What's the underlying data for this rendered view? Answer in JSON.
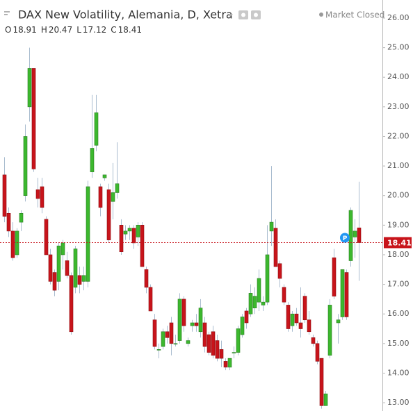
{
  "chart_data": {
    "type": "candlestick",
    "title": "DAX New Volatility, Alemania, D, Xetra",
    "status": "Market Closed",
    "ohlc_labels": [
      "O",
      "H",
      "L",
      "C"
    ],
    "up_color": "#3cb82e",
    "down_color": "#c8141b",
    "wick_color": "#a9bccf",
    "grid": false,
    "ylim": [
      12.72,
      26.61
    ],
    "yticks": [
      {
        "value": 13,
        "label": "13.00"
      },
      {
        "value": 14,
        "label": "14.00"
      },
      {
        "value": 15,
        "label": "15.00"
      },
      {
        "value": 16,
        "label": "16.00"
      },
      {
        "value": 17,
        "label": "17.00"
      },
      {
        "value": 18,
        "label": "18.00"
      },
      {
        "value": 19,
        "label": "19.00"
      },
      {
        "value": 20,
        "label": "20.00"
      },
      {
        "value": 21,
        "label": "21.00"
      },
      {
        "value": 22,
        "label": "22.00"
      },
      {
        "value": 23,
        "label": "23.00"
      },
      {
        "value": 24,
        "label": "24.00"
      },
      {
        "value": 25,
        "label": "25.00"
      },
      {
        "value": 26,
        "label": "26.00"
      }
    ],
    "open": [
      20.7,
      19.4,
      18.8,
      18.0,
      19.1,
      20.0,
      23.0,
      24.3,
      20.2,
      20.3,
      19.2,
      18.0,
      17.4,
      17.1,
      18.0,
      17.8,
      17.3,
      16.9,
      17.3,
      17.1,
      17.1,
      20.8,
      21.7,
      20.3,
      20.6,
      20.2,
      19.8,
      20.1,
      19.0,
      18.7,
      18.8,
      18.9,
      18.6,
      19.0,
      17.5,
      16.9,
      15.8,
      14.8,
      14.9,
      15.4,
      15.7,
      15.0,
      15.1,
      16.5,
      15.0,
      15.6,
      15.7,
      15.4,
      15.7,
      15.3,
      15.4,
      15.1,
      14.8,
      14.4,
      14.2,
      14.7,
      14.7,
      15.3,
      16.1,
      16.0,
      16.2,
      16.4,
      16.3,
      16.4,
      18.8,
      18.9,
      17.7,
      16.9,
      16.3,
      15.6,
      16.0,
      15.7,
      16.6,
      15.8,
      15.2,
      15.0,
      14.5,
      12.9,
      14.6,
      17.9,
      15.7,
      15.9,
      17.4,
      17.8,
      18.6,
      18.91
    ],
    "high": [
      21.3,
      19.6,
      19.1,
      18.9,
      19.5,
      22.4,
      25.0,
      24.3,
      20.6,
      20.6,
      19.3,
      18.2,
      17.5,
      18.4,
      18.5,
      18.1,
      17.4,
      18.3,
      17.6,
      17.6,
      20.5,
      23.4,
      23.4,
      20.4,
      20.7,
      20.4,
      21.1,
      21.8,
      19.2,
      19.0,
      19.0,
      19.0,
      19.1,
      19.1,
      17.6,
      17.0,
      16.0,
      15.0,
      15.5,
      15.6,
      15.9,
      15.3,
      16.7,
      16.6,
      15.2,
      15.8,
      16.0,
      16.5,
      15.9,
      15.4,
      15.6,
      15.3,
      15.1,
      14.5,
      14.5,
      14.9,
      15.6,
      16.0,
      16.2,
      17.0,
      16.9,
      17.5,
      16.6,
      19.0,
      21.0,
      19.2,
      17.8,
      17.0,
      16.4,
      16.1,
      16.2,
      16.9,
      16.7,
      16.1,
      15.3,
      15.1,
      14.5,
      13.4,
      16.5,
      18.2,
      16.0,
      17.5,
      17.5,
      19.6,
      19.2,
      20.47
    ],
    "low": [
      19.1,
      18.6,
      17.8,
      17.9,
      18.8,
      19.8,
      22.5,
      20.8,
      19.6,
      19.4,
      18.0,
      17.0,
      16.6,
      16.8,
      17.5,
      17.2,
      15.3,
      16.7,
      16.7,
      16.8,
      16.9,
      20.6,
      21.5,
      19.3,
      20.5,
      18.4,
      19.2,
      19.9,
      18.0,
      18.5,
      18.5,
      18.2,
      18.3,
      17.6,
      16.7,
      16.1,
      14.8,
      14.5,
      14.8,
      15.0,
      14.6,
      14.9,
      15.0,
      15.4,
      14.9,
      15.4,
      15.4,
      15.2,
      14.7,
      14.6,
      14.5,
      14.4,
      14.2,
      14.1,
      14.1,
      14.5,
      14.6,
      15.2,
      15.5,
      15.9,
      16.0,
      16.1,
      16.1,
      16.3,
      18.3,
      17.6,
      16.9,
      16.3,
      15.4,
      15.4,
      15.6,
      15.2,
      15.7,
      15.3,
      14.9,
      14.3,
      12.8,
      12.9,
      14.5,
      16.5,
      15.0,
      15.8,
      15.8,
      17.6,
      17.9,
      17.12
    ],
    "close": [
      19.3,
      18.8,
      17.9,
      18.8,
      19.4,
      22.0,
      24.3,
      20.9,
      19.9,
      19.6,
      18.0,
      17.1,
      16.8,
      18.3,
      18.4,
      17.3,
      15.4,
      18.2,
      17.0,
      17.3,
      20.3,
      21.6,
      22.8,
      19.6,
      20.7,
      18.5,
      20.1,
      20.4,
      18.1,
      18.8,
      18.9,
      18.4,
      19.0,
      17.6,
      16.9,
      16.1,
      14.9,
      14.8,
      15.4,
      15.2,
      15.0,
      15.0,
      16.5,
      15.6,
      15.1,
      15.7,
      15.6,
      16.2,
      14.9,
      14.7,
      14.6,
      14.5,
      14.5,
      14.2,
      14.5,
      14.7,
      15.5,
      15.9,
      15.7,
      16.7,
      16.6,
      17.2,
      16.4,
      18.0,
      19.1,
      17.6,
      17.2,
      16.4,
      15.5,
      16.0,
      15.7,
      15.5,
      15.8,
      15.4,
      15.0,
      14.4,
      12.9,
      13.3,
      16.3,
      16.6,
      15.8,
      17.5,
      15.9,
      19.5,
      18.8,
      18.41
    ]
  }
}
